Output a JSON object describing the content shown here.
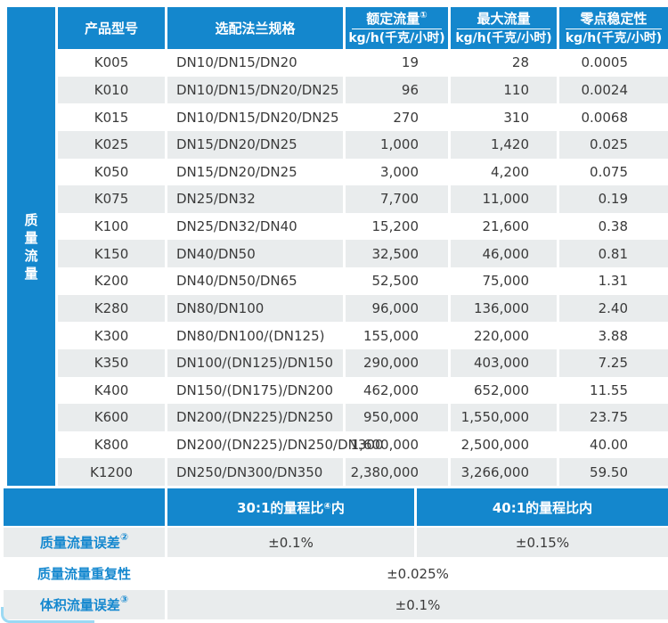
{
  "colors": {
    "accent_blue": "#1487cd",
    "row_alt_gray": "#e9eced",
    "text_dark": "#3a3a3a",
    "label_blue": "#1588cf",
    "corner_light_blue": "#9bd9f3"
  },
  "sidebar": {
    "label": "质量流量"
  },
  "table": {
    "header": {
      "model": "产品型号",
      "flange": "选配法兰规格",
      "rated_title": "额定流量",
      "rated_sup": "①",
      "rated_unit": "kg/h(千克/小时)",
      "max_title": "最大流量",
      "max_unit": "kg/h(千克/小时)",
      "zero_title": "零点稳定性",
      "zero_unit": "kg/h(千克/小时)"
    },
    "rows": [
      {
        "model": "K005",
        "flange": "DN10/DN15/DN20",
        "rated": "19",
        "max": "28",
        "zero": "0.0005"
      },
      {
        "model": "K010",
        "flange": "DN10/DN15/DN20/DN25",
        "rated": "96",
        "max": "110",
        "zero": "0.0024"
      },
      {
        "model": "K015",
        "flange": "DN10/DN15/DN20/DN25",
        "rated": "270",
        "max": "310",
        "zero": "0.0068"
      },
      {
        "model": "K025",
        "flange": "DN15/DN20/DN25",
        "rated": "1,000",
        "max": "1,420",
        "zero": "0.025"
      },
      {
        "model": "K050",
        "flange": "DN15/DN20/DN25",
        "rated": "3,000",
        "max": "4,200",
        "zero": "0.075"
      },
      {
        "model": "K075",
        "flange": "DN25/DN32",
        "rated": "7,700",
        "max": "11,000",
        "zero": "0.19"
      },
      {
        "model": "K100",
        "flange": "DN25/DN32/DN40",
        "rated": "15,200",
        "max": "21,600",
        "zero": "0.38"
      },
      {
        "model": "K150",
        "flange": "DN40/DN50",
        "rated": "32,500",
        "max": "46,000",
        "zero": "0.81"
      },
      {
        "model": "K200",
        "flange": "DN40/DN50/DN65",
        "rated": "52,500",
        "max": "75,000",
        "zero": "1.31"
      },
      {
        "model": "K280",
        "flange": "DN80/DN100",
        "rated": "96,000",
        "max": "136,000",
        "zero": "2.40"
      },
      {
        "model": "K300",
        "flange": "DN80/DN100/(DN125)",
        "rated": "155,000",
        "max": "220,000",
        "zero": "3.88"
      },
      {
        "model": "K350",
        "flange": "DN100/(DN125)/DN150",
        "rated": "290,000",
        "max": "403,000",
        "zero": "7.25"
      },
      {
        "model": "K400",
        "flange": "DN150/(DN175)/DN200",
        "rated": "462,000",
        "max": "652,000",
        "zero": "11.55"
      },
      {
        "model": "K600",
        "flange": "DN200/(DN225)/DN250",
        "rated": "950,000",
        "max": "1,550,000",
        "zero": "23.75"
      },
      {
        "model": "K800",
        "flange": "DN200/(DN225)/DN250/DN300",
        "rated": "1,600,000",
        "max": "2,500,000",
        "zero": "40.00"
      },
      {
        "model": "K1200",
        "flange": "DN250/DN300/DN350",
        "rated": "2,380,000",
        "max": "3,266,000",
        "zero": "59.50"
      }
    ]
  },
  "spec": {
    "header_col1_prefix": "30:1的量程比",
    "header_col1_sup": "④",
    "header_col1_suffix": "内",
    "header_col2": "40:1的量程比内",
    "rows": [
      {
        "label": "质量流量误差",
        "sup": "②",
        "values": [
          "±0.1%",
          "±0.15%"
        ]
      },
      {
        "label": "质量流量重复性",
        "sup": "",
        "values": [
          "±0.025%"
        ]
      },
      {
        "label": "体积流量误差",
        "sup": "③",
        "values": [
          "±0.1%"
        ]
      }
    ]
  }
}
